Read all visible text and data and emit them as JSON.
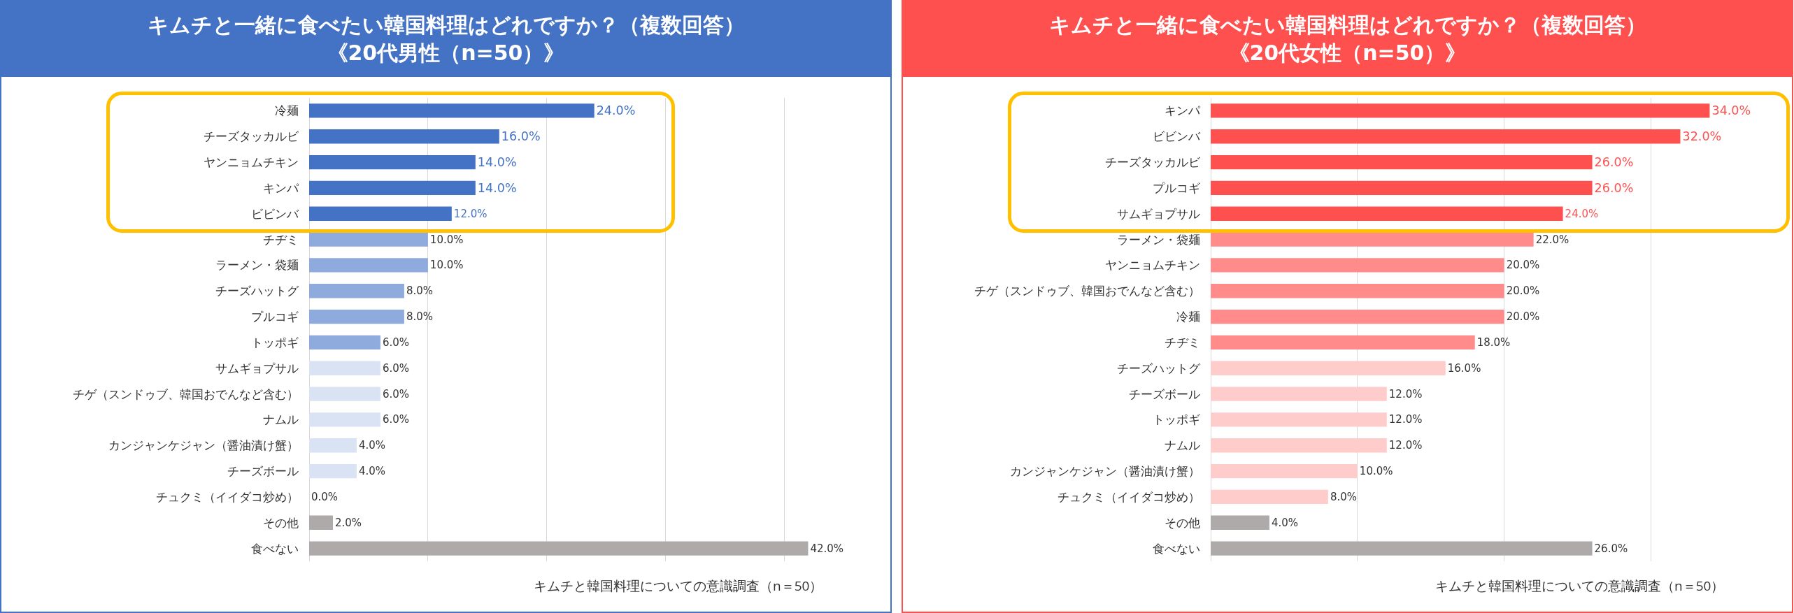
{
  "chart_data": [
    {
      "type": "bar",
      "orientation": "horizontal",
      "title": "キムチと一緒に食べたい韓国料理はどれですか？（複数回答）",
      "subtitle": "《20代男性（n=50）》",
      "categories": [
        "冷麺",
        "チーズタッカルビ",
        "ヤンニョムチキン",
        "キンパ",
        "ビビンバ",
        "チヂミ",
        "ラーメン・袋麺",
        "チーズハットグ",
        "プルコギ",
        "トッポギ",
        "サムギョプサル",
        "チゲ（スンドゥブ、韓国おでんなど含む）",
        "ナムル",
        "カンジャンケジャン（醤油漬け蟹）",
        "チーズボール",
        "チュクミ（イイダコ炒め）",
        "その他",
        "食べない"
      ],
      "values": [
        24,
        16,
        14,
        14,
        12,
        10,
        10,
        8,
        8,
        6,
        6,
        6,
        6,
        4,
        4,
        0,
        2,
        42
      ],
      "value_labels": [
        "24.0%",
        "16.0%",
        "14.0%",
        "14.0%",
        "12.0%",
        "10.0%",
        "10.0%",
        "8.0%",
        "8.0%",
        "6.0%",
        "6.0%",
        "6.0%",
        "6.0%",
        "4.0%",
        "4.0%",
        "0.0%",
        "2.0%",
        "42.0%"
      ],
      "colors": [
        "#4472c4",
        "#4472c4",
        "#4472c4",
        "#4472c4",
        "#4472c4",
        "#8faadc",
        "#8faadc",
        "#8faadc",
        "#8faadc",
        "#8faadc",
        "#dae3f3",
        "#dae3f3",
        "#dae3f3",
        "#dae3f3",
        "#dae3f3",
        "#dae3f3",
        "#aeaaaa",
        "#aeaaaa"
      ],
      "grid": "x",
      "tick_labels": "y",
      "annotations": [
        "キムチと韓国料理についての意識調査（n＝50）"
      ]
    },
    {
      "type": "bar",
      "orientation": "horizontal",
      "title": "キムチと一緒に食べたい韓国料理はどれですか？（複数回答）",
      "subtitle": "《20代女性（n=50）》",
      "categories": [
        "キンパ",
        "ビビンバ",
        "チーズタッカルビ",
        "プルコギ",
        "サムギョプサル",
        "ラーメン・袋麺",
        "ヤンニョムチキン",
        "チゲ（スンドゥブ、韓国おでんなど含む）",
        "冷麺",
        "チヂミ",
        "チーズハットグ",
        "チーズボール",
        "トッポギ",
        "ナムル",
        "カンジャンケジャン（醤油漬け蟹）",
        "チュクミ（イイダコ炒め）",
        "その他",
        "食べない"
      ],
      "values": [
        34,
        32,
        26,
        26,
        24,
        22,
        20,
        20,
        20,
        18,
        16,
        12,
        12,
        12,
        10,
        8,
        4,
        26
      ],
      "value_labels": [
        "34.0%",
        "32.0%",
        "26.0%",
        "26.0%",
        "24.0%",
        "22.0%",
        "20.0%",
        "20.0%",
        "20.0%",
        "18.0%",
        "16.0%",
        "12.0%",
        "12.0%",
        "12.0%",
        "10.0%",
        "8.0%",
        "4.0%",
        "26.0%"
      ],
      "colors": [
        "#ff5050",
        "#ff5050",
        "#ff5050",
        "#ff5050",
        "#ff5050",
        "#ff8b8b",
        "#ff8b8b",
        "#ff8b8b",
        "#ff8b8b",
        "#ff8b8b",
        "#ffcccc",
        "#ffcccc",
        "#ffcccc",
        "#ffcccc",
        "#ffcccc",
        "#ffcccc",
        "#aeaaaa",
        "#aeaaaa"
      ],
      "grid": "x",
      "tick_labels": "y",
      "annotations": [
        "キムチと韓国料理についての意識調査（n＝50）"
      ]
    }
  ]
}
